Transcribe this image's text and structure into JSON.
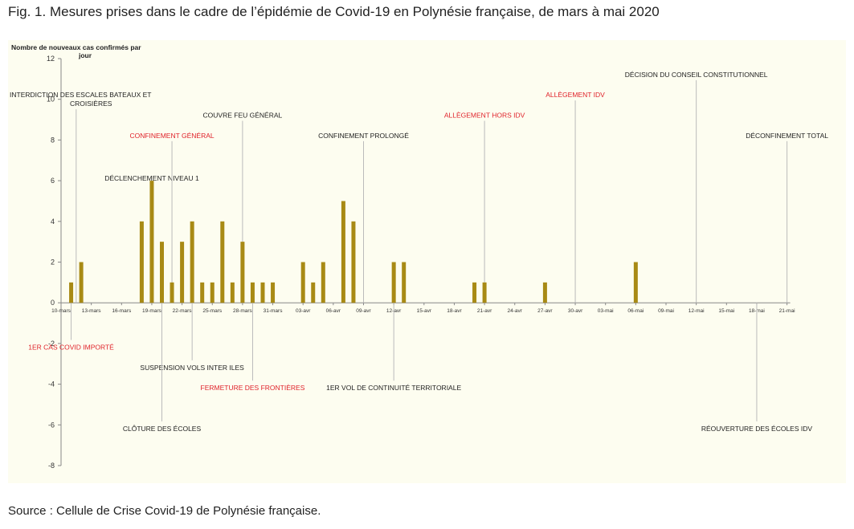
{
  "figure": {
    "title": "Fig. 1. Mesures prises dans le cadre de l’épidémie de Covid-19 en Polynésie française, de mars à mai 2020",
    "source": "Source : Cellule de Crise Covid-19 de Polynésie française."
  },
  "colors": {
    "panel_bg": "#fdfdf0",
    "bar": "#a88a15",
    "annotation_black": "#222222",
    "annotation_red": "#e0222a",
    "guide_line": "#bbbbbb"
  },
  "chart_data": {
    "type": "bar",
    "ylabel": [
      "Nombre de nouveaux cas confirmés par",
      "jour"
    ],
    "ylim": [
      -8,
      12
    ],
    "y_ticks": [
      12,
      10,
      8,
      6,
      4,
      2,
      0,
      -2,
      -4,
      -6,
      -8
    ],
    "x_ticks": [
      "10-mars",
      "13-mars",
      "16-mars",
      "19-mars",
      "22-mars",
      "25-mars",
      "28-mars",
      "31-mars",
      "03-avr",
      "06-avr",
      "09-avr",
      "12-avr",
      "15-avr",
      "18-avr",
      "21-avr",
      "24-avr",
      "27-avr",
      "30-avr",
      "03-mai",
      "06-mai",
      "09-mai",
      "12-mai",
      "15-mai",
      "18-mai",
      "21-mai"
    ],
    "x_start_date": "2020-03-10",
    "grid": false,
    "series": [
      {
        "values": [
          {
            "date": "2020-03-11",
            "value": 1
          },
          {
            "date": "2020-03-12",
            "value": 2
          },
          {
            "date": "2020-03-18",
            "value": 4
          },
          {
            "date": "2020-03-19",
            "value": 6
          },
          {
            "date": "2020-03-20",
            "value": 3
          },
          {
            "date": "2020-03-21",
            "value": 1
          },
          {
            "date": "2020-03-22",
            "value": 3
          },
          {
            "date": "2020-03-23",
            "value": 4
          },
          {
            "date": "2020-03-24",
            "value": 1
          },
          {
            "date": "2020-03-25",
            "value": 1
          },
          {
            "date": "2020-03-26",
            "value": 4
          },
          {
            "date": "2020-03-27",
            "value": 1
          },
          {
            "date": "2020-03-28",
            "value": 3
          },
          {
            "date": "2020-03-29",
            "value": 1
          },
          {
            "date": "2020-03-30",
            "value": 1
          },
          {
            "date": "2020-03-31",
            "value": 1
          },
          {
            "date": "2020-04-03",
            "value": 2
          },
          {
            "date": "2020-04-04",
            "value": 1
          },
          {
            "date": "2020-04-05",
            "value": 2
          },
          {
            "date": "2020-04-07",
            "value": 5
          },
          {
            "date": "2020-04-08",
            "value": 4
          },
          {
            "date": "2020-04-12",
            "value": 2
          },
          {
            "date": "2020-04-13",
            "value": 2
          },
          {
            "date": "2020-04-20",
            "value": 1
          },
          {
            "date": "2020-04-21",
            "value": 1
          },
          {
            "date": "2020-04-27",
            "value": 1
          },
          {
            "date": "2020-05-06",
            "value": 2
          }
        ]
      }
    ],
    "annotations": [
      {
        "lines": [
          "INTERDICTION DES ESCALES BATEAUX ET",
          "CROISIÈRES"
        ],
        "color": "black",
        "date": "2020-03-11.5",
        "y": 10.1
      },
      {
        "lines": [
          "DÉCLENCHEMENT NIVEAU 1"
        ],
        "color": "black",
        "date": "2020-03-19",
        "y": 6.0
      },
      {
        "lines": [
          "CONFINEMENT GÉNÉRAL"
        ],
        "color": "red",
        "date": "2020-03-21",
        "y": 8.1
      },
      {
        "lines": [
          "COUVRE FEU GÉNÉRAL"
        ],
        "color": "black",
        "date": "2020-03-28",
        "y": 9.1
      },
      {
        "lines": [
          "CONFINEMENT PROLONGÉ"
        ],
        "color": "black",
        "date": "2020-04-09",
        "y": 8.1
      },
      {
        "lines": [
          "ALLÈGEMENT HORS IDV"
        ],
        "color": "red",
        "date": "2020-04-21",
        "y": 9.1
      },
      {
        "lines": [
          "ALLÈGEMENT IDV"
        ],
        "color": "red",
        "date": "2020-04-30",
        "y": 10.1
      },
      {
        "lines": [
          "DÉCISION DU CONSEIL CONSTITUTIONNEL"
        ],
        "color": "black",
        "date": "2020-05-12",
        "y": 11.1
      },
      {
        "lines": [
          "DÉCONFINEMENT TOTAL"
        ],
        "color": "black",
        "date": "2020-05-21",
        "y": 8.1
      },
      {
        "lines": [
          "1ER CAS COVID IMPORTÉ"
        ],
        "color": "red",
        "date": "2020-03-11",
        "y": -2.3
      },
      {
        "lines": [
          "SUSPENSION VOLS INTER ILES"
        ],
        "color": "black",
        "date": "2020-03-23",
        "y": -3.3
      },
      {
        "lines": [
          "FERMETURE DES FRONTIÈRES"
        ],
        "color": "red",
        "date": "2020-03-29",
        "y": -4.3
      },
      {
        "lines": [
          "1ER VOL DE CONTINUITÉ TERRITORIALE"
        ],
        "color": "black",
        "date": "2020-04-12",
        "y": -4.3
      },
      {
        "lines": [
          "CLÔTURE DES ÉCOLES"
        ],
        "color": "black",
        "date": "2020-03-20",
        "y": -6.3
      },
      {
        "lines": [
          "RÉOUVERTURE DES ÉCOLES IDV"
        ],
        "color": "black",
        "date": "2020-05-18",
        "y": -6.3
      }
    ]
  }
}
